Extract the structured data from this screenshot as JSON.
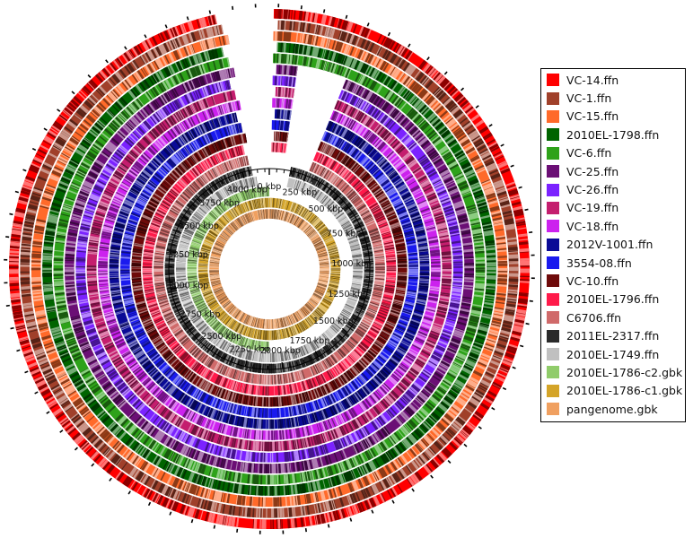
{
  "axis": {
    "ticks": [
      "0 kbp",
      "250 kbp",
      "500 kbp",
      "750 kbp",
      "1000 kbp",
      "1250 kbp",
      "1500 kbp",
      "1750 kbp",
      "2000 kbp",
      "2250 kbp",
      "2500 kbp",
      "2750 kbp",
      "3000 kbp",
      "3250 kbp",
      "3500 kbp",
      "3750 kbp",
      "4000 kbp"
    ],
    "tick_step_kbp": 250,
    "genome_length_kbp": 4180
  },
  "tracks": [
    {
      "name": "VC-14.ffn",
      "color": "#ff0000"
    },
    {
      "name": "VC-1.ffn",
      "color": "#a0402a"
    },
    {
      "name": "VC-15.ffn",
      "color": "#ff6a2a"
    },
    {
      "name": "2010EL-1798.ffn",
      "color": "#006400"
    },
    {
      "name": "VC-6.ffn",
      "color": "#2ea21a"
    },
    {
      "name": "VC-25.ffn",
      "color": "#6b0f75"
    },
    {
      "name": "VC-26.ffn",
      "color": "#7b22ff"
    },
    {
      "name": "VC-19.ffn",
      "color": "#c41e6e"
    },
    {
      "name": "VC-18.ffn",
      "color": "#cc22ee"
    },
    {
      "name": "2012V-1001.ffn",
      "color": "#0a0a96"
    },
    {
      "name": "3554-08.ffn",
      "color": "#1a1aee"
    },
    {
      "name": "VC-10.ffn",
      "color": "#6e0a0a"
    },
    {
      "name": "2010EL-1796.ffn",
      "color": "#ff1a4a"
    },
    {
      "name": "C6706.ffn",
      "color": "#d06a6a"
    },
    {
      "name": "2011EL-2317.ffn",
      "color": "#2a2a2a"
    },
    {
      "name": "2010EL-1749.ffn",
      "color": "#c0c0c0"
    },
    {
      "name": "2010EL-1786-c2.gbk",
      "color": "#90cc6a"
    },
    {
      "name": "2010EL-1786-c1.gbk",
      "color": "#d4a428"
    },
    {
      "name": "pangenome.gbk",
      "color": "#f0a060"
    }
  ]
}
